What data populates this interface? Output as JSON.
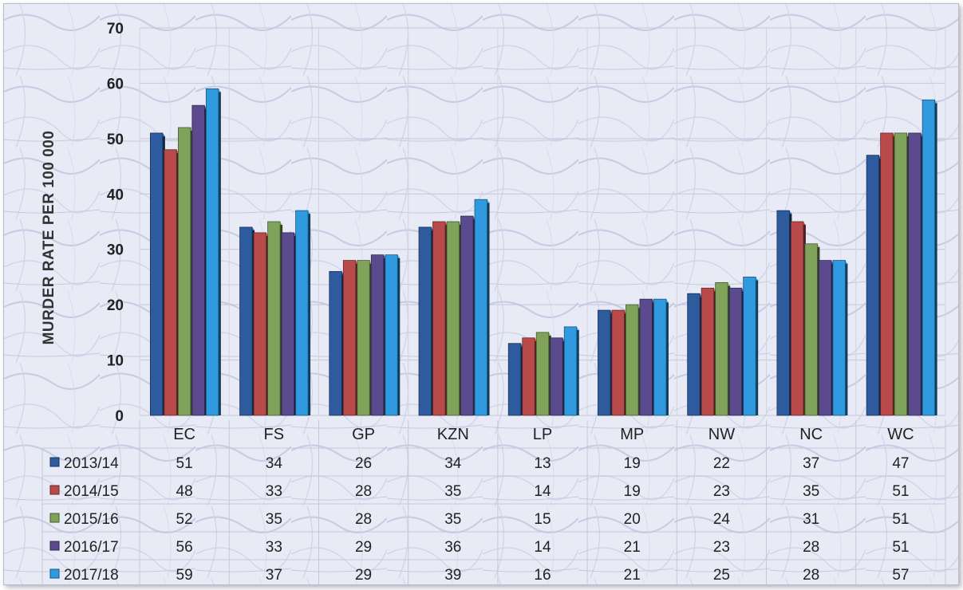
{
  "chart_data": {
    "type": "bar",
    "title": "",
    "xlabel": "",
    "ylabel": "MURDER RATE PER 100 000",
    "ylim": [
      0,
      70
    ],
    "yticks": [
      0,
      10,
      20,
      30,
      40,
      50,
      60,
      70
    ],
    "grid": true,
    "legend_placement": "data-table-left",
    "categories": [
      "EC",
      "FS",
      "GP",
      "KZN",
      "LP",
      "MP",
      "NW",
      "NC",
      "WC"
    ],
    "series": [
      {
        "name": "2013/14",
        "color": "#2d5b9e",
        "values": [
          51,
          34,
          26,
          34,
          13,
          19,
          22,
          37,
          47
        ]
      },
      {
        "name": "2014/15",
        "color": "#b84a4a",
        "values": [
          48,
          33,
          28,
          35,
          14,
          19,
          23,
          35,
          51
        ]
      },
      {
        "name": "2015/16",
        "color": "#7fa35a",
        "values": [
          52,
          35,
          28,
          35,
          15,
          20,
          24,
          31,
          51
        ]
      },
      {
        "name": "2016/17",
        "color": "#5b4a8e",
        "values": [
          56,
          33,
          29,
          36,
          14,
          21,
          23,
          28,
          51
        ]
      },
      {
        "name": "2017/18",
        "color": "#2f9ae0",
        "values": [
          59,
          37,
          29,
          39,
          16,
          21,
          25,
          28,
          57
        ]
      }
    ],
    "data_table": true
  }
}
